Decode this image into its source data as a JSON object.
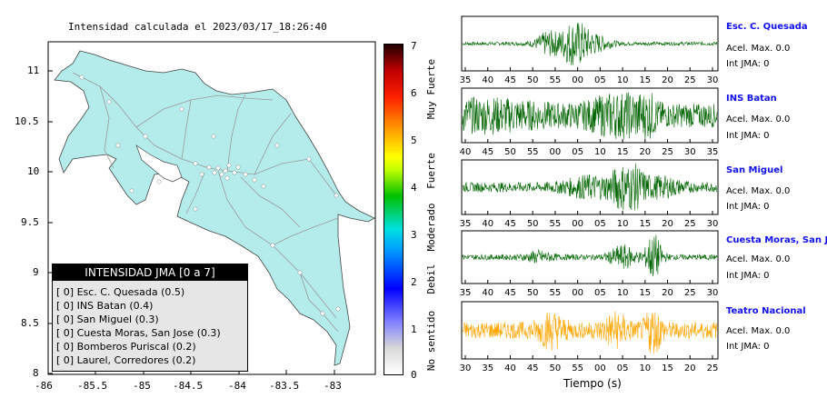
{
  "map": {
    "title": "Intensidad calculada el 2023/03/17_18:26:40",
    "lon_ticks": [
      "-86",
      "-85.5",
      "-85",
      "-84.5",
      "-84",
      "-83.5",
      "-83"
    ],
    "lat_ticks": [
      "11",
      "10.5",
      "10",
      "9.5",
      "9",
      "8.5",
      "8"
    ],
    "xlim": [
      -86,
      -82.6
    ],
    "ylim": [
      8,
      11.3
    ],
    "land_color": "#b4ecec"
  },
  "colorbar": {
    "ticks": [
      "0",
      "1",
      "2",
      "3",
      "4",
      "5",
      "6",
      "7"
    ],
    "labels": [
      "No sentido",
      "Debil",
      "Moderado",
      "Fuerte",
      "Muy Fuerte"
    ]
  },
  "legend": {
    "title": "INTENSIDAD JMA [0 a 7]",
    "rows": [
      {
        "bracket": "[ 0]",
        "text": "Esc. C. Quesada (0.5)"
      },
      {
        "bracket": "[ 0]",
        "text": "INS Batan (0.4)"
      },
      {
        "bracket": "[ 0]",
        "text": "San Miguel (0.3)"
      },
      {
        "bracket": "[ 0]",
        "text": "Cuesta Moras, San Jose (0.3)"
      },
      {
        "bracket": "[ 0]",
        "text": "Bomberos Puriscal (0.2)"
      },
      {
        "bracket": "[ 0]",
        "text": "Laurel, Corredores (0.2)"
      }
    ]
  },
  "chart_data": {
    "type": "line",
    "xlabel": "Tiempo (s)",
    "stations": [
      {
        "name": "Esc. C. Quesada",
        "accel": "Acel. Max. 0.0",
        "int": "Int JMA: 0",
        "color": "#006400",
        "ticks": [
          "35",
          "40",
          "45",
          "50",
          "55",
          "00",
          "05",
          "10",
          "15",
          "20",
          "25",
          "30"
        ],
        "amp": 0.9,
        "noise": 0.08,
        "bursts": [
          [
            0.34,
            0.05,
            0.5
          ],
          [
            0.44,
            0.05,
            1.0
          ],
          [
            0.52,
            0.06,
            0.35
          ]
        ]
      },
      {
        "name": "INS Batan",
        "accel": "Acel. Max. 0.0",
        "int": "Int JMA: 0",
        "color": "#006400",
        "ticks": [
          "40",
          "45",
          "50",
          "55",
          "00",
          "05",
          "10",
          "15",
          "20",
          "25",
          "30",
          "35"
        ],
        "amp": 0.95,
        "noise": 0.5,
        "bursts": [
          [
            0.6,
            0.1,
            0.5
          ],
          [
            0.7,
            0.05,
            0.9
          ],
          [
            0.1,
            0.2,
            0.3
          ]
        ]
      },
      {
        "name": "San Miguel",
        "accel": "Acel. Max. 0.0",
        "int": "Int JMA: 0",
        "color": "#006400",
        "ticks": [
          "35",
          "40",
          "45",
          "50",
          "55",
          "00",
          "05",
          "10",
          "15",
          "20",
          "25",
          "30"
        ],
        "amp": 0.95,
        "noise": 0.2,
        "bursts": [
          [
            0.65,
            0.06,
            1.0
          ],
          [
            0.5,
            0.1,
            0.35
          ],
          [
            0.78,
            0.08,
            0.3
          ]
        ]
      },
      {
        "name": "Cuesta Moras, San Jose",
        "accel": "Acel. Max. 0.0",
        "int": "Int JMA: 0",
        "color": "#006400",
        "ticks": [
          "35",
          "40",
          "45",
          "50",
          "55",
          "00",
          "05",
          "10",
          "15",
          "20",
          "25",
          "30"
        ],
        "amp": 0.95,
        "noise": 0.12,
        "bursts": [
          [
            0.75,
            0.03,
            1.0
          ],
          [
            0.63,
            0.05,
            0.45
          ],
          [
            0.3,
            0.05,
            0.2
          ]
        ]
      },
      {
        "name": "Teatro Nacional",
        "accel": "Acel. Max. 0.0",
        "int": "Int JMA: 0",
        "color": "#ffa500",
        "ticks": [
          "30",
          "35",
          "40",
          "45",
          "50",
          "55",
          "00",
          "05",
          "10",
          "15",
          "20",
          "25"
        ],
        "amp": 0.9,
        "noise": 0.35,
        "bursts": [
          [
            0.75,
            0.03,
            0.9
          ],
          [
            0.35,
            0.05,
            0.55
          ],
          [
            0.6,
            0.05,
            0.5
          ]
        ]
      }
    ]
  }
}
